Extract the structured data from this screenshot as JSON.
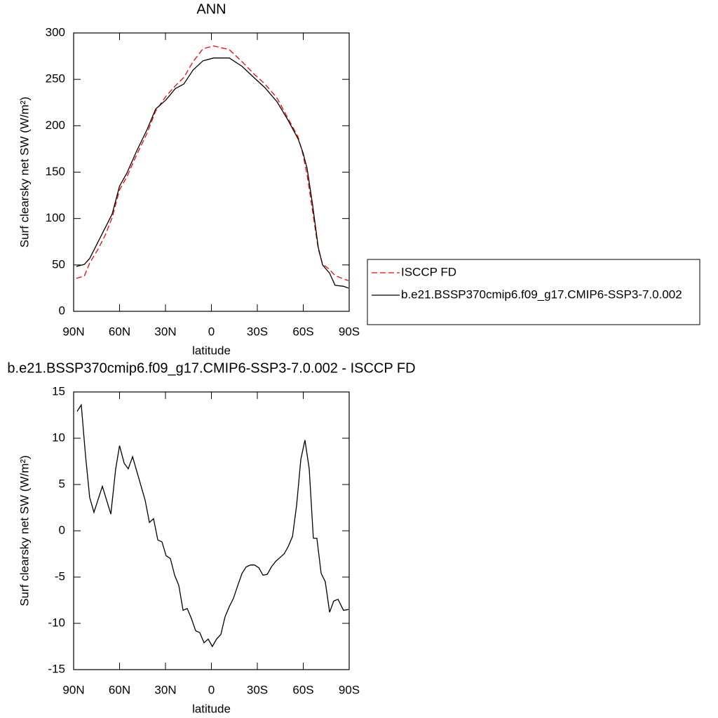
{
  "chart_data": [
    {
      "type": "line",
      "title": "ANN",
      "xlabel": "latitude",
      "ylabel": "Surf clearsky net SW (W/m²)",
      "x": [
        88.2,
        83,
        79.5,
        74,
        69.4,
        64.8,
        60,
        55.2,
        48.8,
        42,
        36.4,
        29.6,
        23.6,
        18,
        12,
        5.5,
        -1.4,
        -11.7,
        -20,
        -27.7,
        -35,
        -42.8,
        -49.7,
        -56.6,
        -59.8,
        -62.5,
        -66,
        -69.8,
        -72.6,
        -77.2,
        -80.8,
        -86.3,
        -89.5
      ],
      "series": [
        {
          "name": "ISCCP FD",
          "color": "#ff0000",
          "linestyle": "dashed",
          "values": [
            35.5,
            38,
            52,
            67,
            82,
            101,
            131,
            145,
            169,
            192,
            216,
            232,
            243,
            252,
            269,
            283,
            286,
            282,
            269,
            256,
            245,
            230,
            209,
            188,
            169,
            147,
            109,
            67,
            51,
            45,
            38.5,
            35,
            33
          ]
        },
        {
          "name": "b.e21.BSSP370cmip6.f09_g17.CMIP6-SSP3-7.0.002",
          "color": "#000000",
          "linestyle": "solid",
          "values": [
            48.4,
            50.6,
            57,
            75,
            90,
            105,
            135,
            149,
            173,
            196,
            218,
            228,
            240,
            245,
            260,
            270,
            273,
            273,
            264,
            252,
            241,
            226,
            207,
            186,
            171,
            154,
            116,
            69,
            50,
            41,
            28,
            27,
            25
          ]
        }
      ],
      "xlim": [
        90,
        -90
      ],
      "xticks": [
        {
          "value": 90,
          "label": "90N"
        },
        {
          "value": 60,
          "label": "60N"
        },
        {
          "value": 30,
          "label": "30N"
        },
        0,
        {
          "value": -30,
          "label": "30S"
        },
        {
          "value": -60,
          "label": "60S"
        },
        {
          "value": -90,
          "label": "90S"
        }
      ],
      "ylim": [
        0,
        300
      ],
      "yticks": [
        0,
        50,
        100,
        150,
        200,
        250,
        300
      ],
      "legend": "right"
    },
    {
      "type": "line",
      "title": "b.e21.BSSP370cmip6.f09_g17.CMIP6-SSP3-7.0.002 - ISCCP FD",
      "xlabel": "latitude",
      "ylabel": "Surf clearsky net SW (W/m²)",
      "x": [
        87.7,
        85,
        82.2,
        79.5,
        76.7,
        71.2,
        65.7,
        62.5,
        60,
        57,
        54.3,
        51.5,
        43.3,
        40.5,
        37.8,
        35,
        32.3,
        29.6,
        26.8,
        24,
        21.3,
        18.5,
        15.8,
        13,
        10.3,
        7.6,
        4.8,
        2.1,
        -0.6,
        -3.4,
        -6.2,
        -8.9,
        -11.7,
        -14.4,
        -17.2,
        -20,
        -22.7,
        -25.5,
        -28.2,
        -31,
        -33.7,
        -36.5,
        -39.2,
        -42,
        -44.7,
        -47.5,
        -50.2,
        -53,
        -55.7,
        -58.4,
        -61.1,
        -63.9,
        -66.6,
        -68.9,
        -71.7,
        -74.4,
        -77.2,
        -79.9,
        -82.7,
        -86.3,
        -89.5
      ],
      "values": [
        12.9,
        13.6,
        8.1,
        3.6,
        2.0,
        4.8,
        1.8,
        6.7,
        9.2,
        7.3,
        6.7,
        8.0,
        3.3,
        0.9,
        1.3,
        -1.0,
        -1.2,
        -2.7,
        -3.0,
        -4.8,
        -5.9,
        -8.6,
        -8.4,
        -9.5,
        -10.8,
        -11.0,
        -12.1,
        -11.7,
        -12.5,
        -11.7,
        -11.2,
        -9.3,
        -8.2,
        -7.3,
        -5.9,
        -4.6,
        -3.9,
        -3.7,
        -3.7,
        -4.0,
        -4.8,
        -4.7,
        -3.9,
        -3.3,
        -2.9,
        -2.5,
        -1.7,
        -0.6,
        2.8,
        7.7,
        9.8,
        6.7,
        -0.8,
        -0.8,
        -4.6,
        -5.5,
        -8.8,
        -7.6,
        -7.4,
        -8.6,
        -8.5
      ],
      "color": "#000000",
      "xlim": [
        90,
        -90
      ],
      "xticks": [
        {
          "value": 90,
          "label": "90N"
        },
        {
          "value": 60,
          "label": "60N"
        },
        {
          "value": 30,
          "label": "30N"
        },
        0,
        {
          "value": -30,
          "label": "30S"
        },
        {
          "value": -60,
          "label": "60S"
        },
        {
          "value": -90,
          "label": "90S"
        }
      ],
      "ylim": [
        -15,
        15
      ],
      "yticks": [
        -15,
        -10,
        -5,
        0,
        5,
        10,
        15
      ]
    }
  ]
}
